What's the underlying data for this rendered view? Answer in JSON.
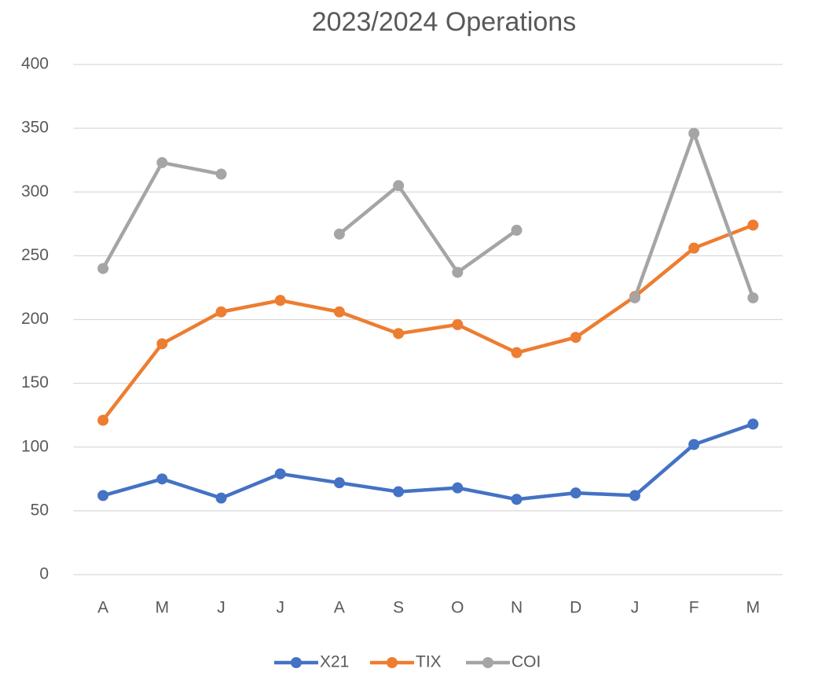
{
  "chart_data": {
    "type": "line",
    "title": "2023/2024 Operations",
    "categories": [
      "A",
      "M",
      "J",
      "J",
      "A",
      "S",
      "O",
      "N",
      "D",
      "J",
      "F",
      "M"
    ],
    "series": [
      {
        "name": "X21",
        "color": "#4472c4",
        "values": [
          62,
          75,
          60,
          79,
          72,
          65,
          68,
          59,
          64,
          62,
          102,
          118
        ]
      },
      {
        "name": "TIX",
        "color": "#ed7d31",
        "values": [
          121,
          181,
          206,
          215,
          206,
          189,
          196,
          174,
          186,
          218,
          256,
          274
        ]
      },
      {
        "name": "COI",
        "color": "#a5a5a5",
        "values": [
          240,
          323,
          314,
          null,
          267,
          305,
          237,
          270,
          null,
          217,
          346,
          217
        ]
      }
    ],
    "ylim": [
      0,
      400
    ],
    "yticks": [
      0,
      50,
      100,
      150,
      200,
      250,
      300,
      350,
      400
    ],
    "grid": true,
    "legend": "bottom"
  }
}
